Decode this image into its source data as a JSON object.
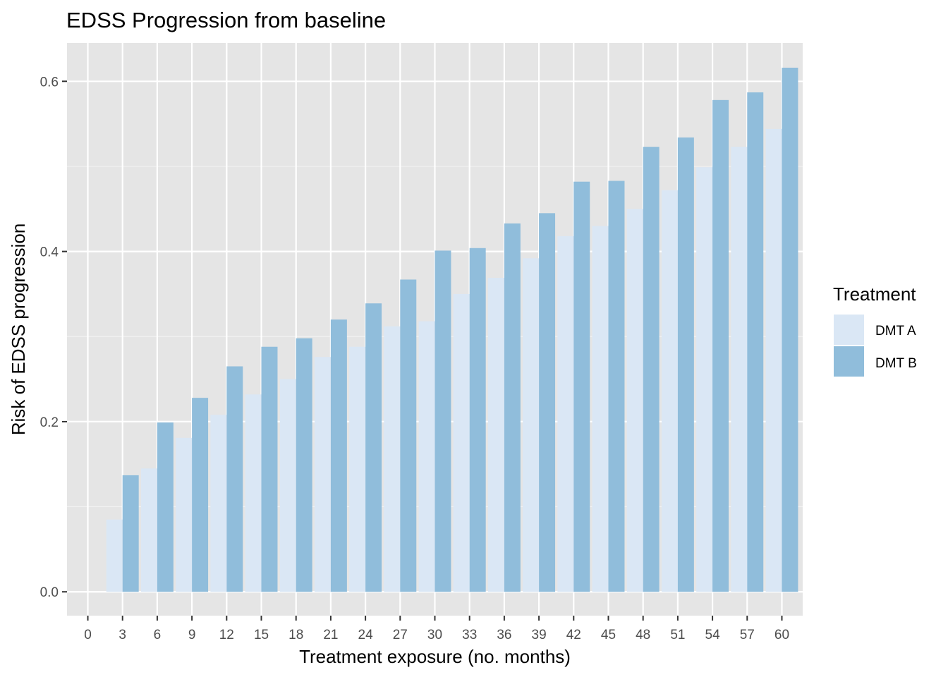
{
  "chart_data": {
    "type": "bar",
    "title": "EDSS Progression from baseline",
    "xlabel": "Treatment exposure (no. months)",
    "ylabel": "Risk of EDSS progression",
    "x_ticks": [
      0,
      3,
      6,
      9,
      12,
      15,
      18,
      21,
      24,
      27,
      30,
      33,
      36,
      39,
      42,
      45,
      48,
      51,
      54,
      57,
      60
    ],
    "y_ticks": [
      "0.0",
      "0.2",
      "0.4",
      "0.6"
    ],
    "xlim": [
      -1.8,
      61.8
    ],
    "ylim": [
      -0.028,
      0.645
    ],
    "grid": true,
    "legend_title": "Treatment",
    "legend_position": "right",
    "series": [
      {
        "name": "DMT A",
        "color": "#dae7f5",
        "x": [
          3,
          6,
          9,
          12,
          15,
          18,
          21,
          24,
          27,
          30,
          33,
          36,
          39,
          42,
          45,
          48,
          51,
          54,
          57,
          60
        ],
        "values": [
          0.085,
          0.145,
          0.181,
          0.208,
          0.232,
          0.25,
          0.276,
          0.288,
          0.312,
          0.318,
          0.35,
          0.369,
          0.392,
          0.418,
          0.43,
          0.45,
          0.472,
          0.499,
          0.523,
          0.544
        ]
      },
      {
        "name": "DMT B",
        "color": "#90bddb",
        "x": [
          3,
          6,
          9,
          12,
          15,
          18,
          21,
          24,
          27,
          30,
          33,
          36,
          39,
          42,
          45,
          48,
          51,
          54,
          57,
          60
        ],
        "values": [
          0.137,
          0.199,
          0.228,
          0.265,
          0.288,
          0.298,
          0.32,
          0.339,
          0.367,
          0.401,
          0.404,
          0.433,
          0.445,
          0.482,
          0.483,
          0.523,
          0.534,
          0.578,
          0.587,
          0.616
        ]
      }
    ]
  }
}
